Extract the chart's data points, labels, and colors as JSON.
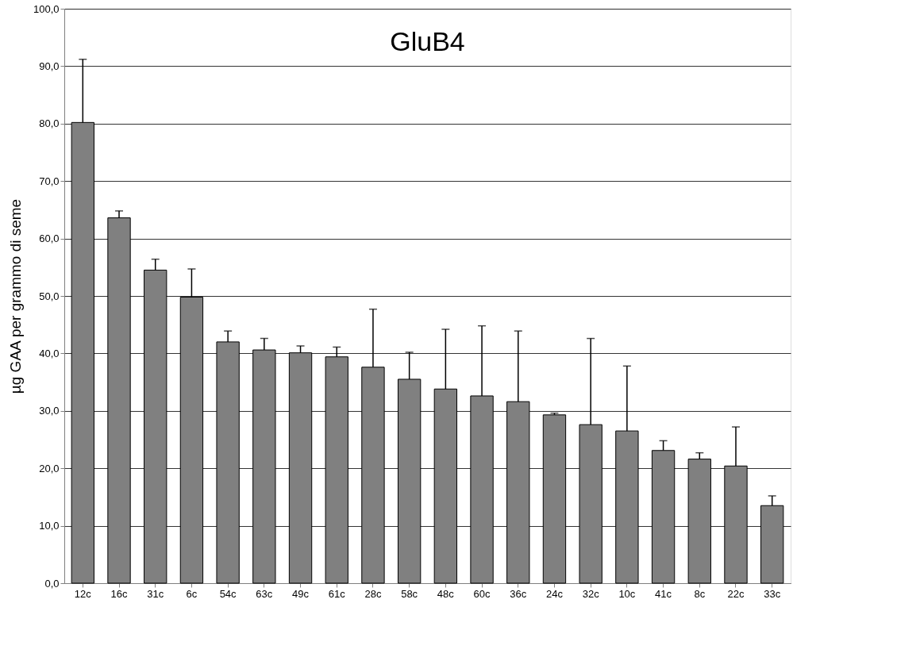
{
  "chart_data": {
    "type": "bar",
    "title": "GluB4",
    "ylabel": "µg GAA per grammo di seme",
    "categories": [
      "12c",
      "16c",
      "31c",
      "6c",
      "54c",
      "63c",
      "49c",
      "61c",
      "28c",
      "58c",
      "48c",
      "60c",
      "36c",
      "24c",
      "32c",
      "10c",
      "41c",
      "8c",
      "22c",
      "33c"
    ],
    "values": [
      80.2,
      63.6,
      54.5,
      49.8,
      42.0,
      40.6,
      40.1,
      39.4,
      37.6,
      35.5,
      33.8,
      32.6,
      31.6,
      29.3,
      27.6,
      26.5,
      23.1,
      21.6,
      20.4,
      13.5
    ],
    "errors": [
      [
        80.2,
        91.2
      ],
      [
        63.6,
        64.8
      ],
      [
        54.5,
        56.4
      ],
      [
        49.8,
        54.7
      ],
      [
        42.0,
        43.9
      ],
      [
        40.6,
        42.6
      ],
      [
        40.1,
        41.3
      ],
      [
        39.4,
        41.1
      ],
      [
        37.6,
        47.7
      ],
      [
        35.5,
        40.2
      ],
      [
        33.8,
        44.2
      ],
      [
        32.6,
        44.8
      ],
      [
        31.6,
        43.9
      ],
      [
        29.3,
        29.6
      ],
      [
        27.6,
        42.6
      ],
      [
        26.5,
        37.8
      ],
      [
        23.1,
        24.8
      ],
      [
        21.6,
        22.7
      ],
      [
        20.4,
        27.2
      ],
      [
        13.5,
        15.2
      ]
    ],
    "color": "#808080",
    "ylim": [
      0,
      100
    ],
    "yticks": [
      {
        "value": 0,
        "label": "0,0"
      },
      {
        "value": 10,
        "label": "10,0"
      },
      {
        "value": 20,
        "label": "20,0"
      },
      {
        "value": 30,
        "label": "30,0"
      },
      {
        "value": 40,
        "label": "40,0"
      },
      {
        "value": 50,
        "label": "50,0"
      },
      {
        "value": 60,
        "label": "60,0"
      },
      {
        "value": 70,
        "label": "70,0"
      },
      {
        "value": 80,
        "label": "80,0"
      },
      {
        "value": 90,
        "label": "90,0"
      },
      {
        "value": 100,
        "label": "100,0"
      }
    ],
    "grid": "y"
  }
}
